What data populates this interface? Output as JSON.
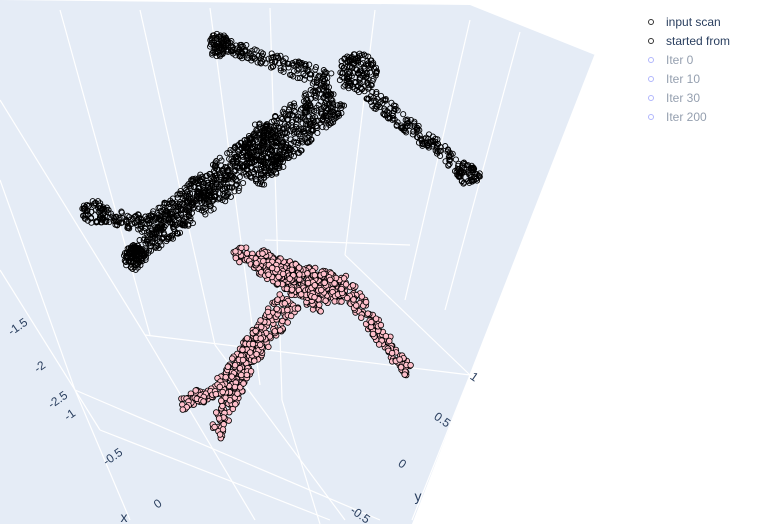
{
  "chart_data": {
    "type": "scatter3d",
    "title": "",
    "axes": {
      "x": {
        "title": "x",
        "ticks": [
          "-1",
          "-0.5",
          "0"
        ]
      },
      "y": {
        "title": "y",
        "ticks": [
          "1",
          "0.5",
          "0",
          "-0.5"
        ]
      },
      "z": {
        "title": "",
        "ticks": [
          "-1.5",
          "-2",
          "-2.5"
        ]
      }
    },
    "legend_position": "top-right",
    "colors": {
      "scene_bg": "#e5ecf6",
      "grid": "#ffffff",
      "mesh_points": "#000000",
      "scan_points_fill": "#ffc0cb",
      "scan_points_edge": "#000000",
      "hidden_marker": "#636efa"
    },
    "series": [
      {
        "name": "input scan",
        "visible": true,
        "marker_color": "#ffc0cb",
        "marker_line": "#000000"
      },
      {
        "name": "started from",
        "visible": true,
        "marker_color": "#000000",
        "marker_line": "#000000"
      },
      {
        "name": "Iter 0",
        "visible": false,
        "marker_color": "#636efa"
      },
      {
        "name": "Iter 10",
        "visible": false,
        "marker_color": "#636efa"
      },
      {
        "name": "Iter 30",
        "visible": false,
        "marker_color": "#636efa"
      },
      {
        "name": "Iter 200",
        "visible": false,
        "marker_color": "#636efa"
      }
    ]
  }
}
